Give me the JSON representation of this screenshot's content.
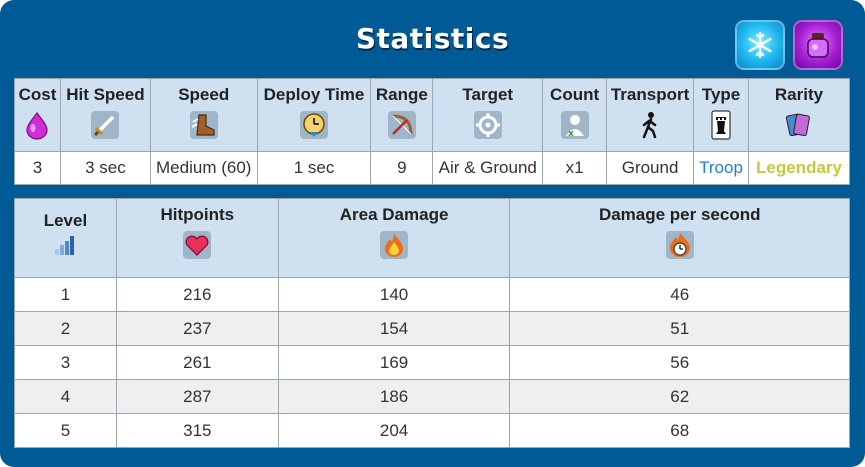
{
  "title": "Statistics",
  "badges": [
    {
      "icon": "freeze-spell-icon"
    },
    {
      "icon": "elixir-collector-icon"
    }
  ],
  "colors": {
    "panel": "#005a96",
    "header_bg": "#cfe0f0",
    "type_troop": "#2a7bd1",
    "rarity_legendary": "#c8c93a"
  },
  "stats": {
    "headers": [
      {
        "label": "Cost",
        "icon": "elixir-drop-icon"
      },
      {
        "label": "Hit Speed",
        "icon": "sword-icon"
      },
      {
        "label": "Speed",
        "icon": "boot-icon"
      },
      {
        "label": "Deploy Time",
        "icon": "clock-icon"
      },
      {
        "label": "Range",
        "icon": "bow-icon"
      },
      {
        "label": "Target",
        "icon": "crosshair-icon"
      },
      {
        "label": "Count",
        "icon": "unit-count-icon"
      },
      {
        "label": "Transport",
        "icon": "walking-person-icon"
      },
      {
        "label": "Type",
        "icon": "rook-card-icon"
      },
      {
        "label": "Rarity",
        "icon": "cards-icon"
      }
    ],
    "values": [
      "3",
      "3 sec",
      "Medium (60)",
      "1 sec",
      "9",
      "Air & Ground",
      "x1",
      "Ground",
      "Troop",
      "Legendary"
    ]
  },
  "levels": {
    "headers": [
      {
        "label": "Level",
        "icon": "level-bars-icon"
      },
      {
        "label": "Hitpoints",
        "icon": "heart-icon"
      },
      {
        "label": "Area Damage",
        "icon": "fire-icon"
      },
      {
        "label": "Damage per second",
        "icon": "fire-clock-icon"
      }
    ],
    "rows": [
      [
        "1",
        "216",
        "140",
        "46"
      ],
      [
        "2",
        "237",
        "154",
        "51"
      ],
      [
        "3",
        "261",
        "169",
        "56"
      ],
      [
        "4",
        "287",
        "186",
        "62"
      ],
      [
        "5",
        "315",
        "204",
        "68"
      ]
    ]
  }
}
